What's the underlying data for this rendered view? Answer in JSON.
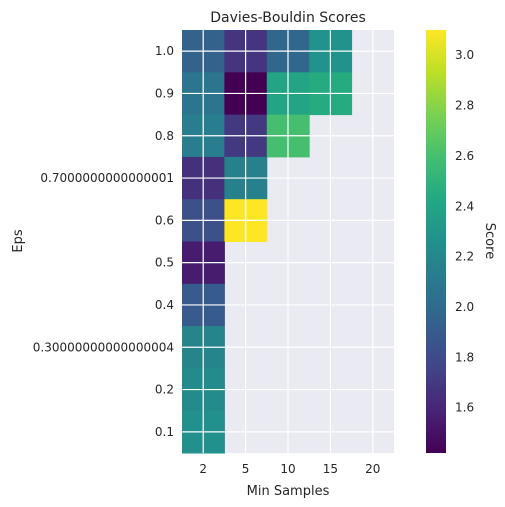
{
  "chart_data": {
    "type": "heatmap",
    "title": "Davies-Bouldin Scores",
    "xlabel": "Min Samples",
    "ylabel": "Eps",
    "x_categories": [
      "2",
      "5",
      "10",
      "15",
      "20"
    ],
    "y_categories": [
      "1.0",
      "0.9",
      "0.8",
      "0.7000000000000001",
      "0.6",
      "0.5",
      "0.4",
      "0.30000000000000004",
      "0.2",
      "0.1"
    ],
    "values": [
      [
        1.95,
        1.67,
        1.98,
        2.27,
        null
      ],
      [
        2.07,
        1.42,
        2.4,
        2.45,
        null
      ],
      [
        2.13,
        1.7,
        2.6,
        null,
        null
      ],
      [
        1.65,
        2.15,
        null,
        null,
        null
      ],
      [
        1.83,
        3.1,
        null,
        null,
        null
      ],
      [
        1.55,
        null,
        null,
        null,
        null
      ],
      [
        1.9,
        null,
        null,
        null,
        null
      ],
      [
        2.17,
        null,
        null,
        null,
        null
      ],
      [
        2.22,
        null,
        null,
        null,
        null
      ],
      [
        2.25,
        null,
        null,
        null,
        null
      ]
    ],
    "colorbar": {
      "label": "Score",
      "min": 1.42,
      "max": 3.1,
      "ticks": [
        "1.6",
        "1.8",
        "2.0",
        "2.2",
        "2.4",
        "2.6",
        "2.8",
        "3.0"
      ],
      "colormap": "viridis"
    },
    "grid": true,
    "missing_color": "#EAEAF2"
  }
}
